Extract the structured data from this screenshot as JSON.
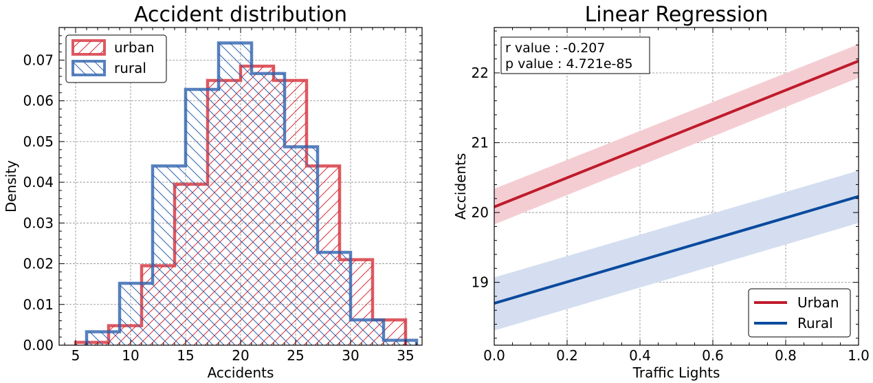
{
  "chart_data": [
    {
      "type": "histogram",
      "title": "Accident distribution",
      "xlabel": "Accidents",
      "ylabel": "Density",
      "xlim": [
        3.5,
        36.5
      ],
      "ylim": [
        0,
        0.078
      ],
      "xticks": [
        5,
        10,
        15,
        20,
        25,
        30,
        35
      ],
      "yticks": [
        0.0,
        0.01,
        0.02,
        0.03,
        0.04,
        0.05,
        0.06,
        0.07
      ],
      "ytick_labels": [
        "0.00",
        "0.01",
        "0.02",
        "0.03",
        "0.04",
        "0.05",
        "0.06",
        "0.07"
      ],
      "grid": true,
      "legend_position": "top-left",
      "series": [
        {
          "name": "urban",
          "color": "#d62f3a",
          "hatch": "/",
          "bin_edges": [
            5,
            8,
            11,
            14,
            17,
            20,
            23,
            26,
            29,
            32,
            35
          ],
          "values": [
            0.0007,
            0.0048,
            0.0195,
            0.0395,
            0.065,
            0.0685,
            0.065,
            0.044,
            0.021,
            0.0062
          ]
        },
        {
          "name": "rural",
          "color": "#2d62ae",
          "hatch": "\\",
          "bin_edges": [
            6,
            9,
            12,
            15,
            18,
            21,
            24,
            27,
            30,
            33,
            36
          ],
          "values": [
            0.0033,
            0.0152,
            0.044,
            0.0628,
            0.0742,
            0.0667,
            0.0487,
            0.0228,
            0.0062,
            0.0012
          ]
        }
      ]
    },
    {
      "type": "line",
      "title": "Linear Regression",
      "xlabel": "Traffic Lights",
      "ylabel": "Accidents",
      "xlim": [
        0.0,
        1.0
      ],
      "ylim": [
        18.1,
        22.65
      ],
      "xticks": [
        0.0,
        0.2,
        0.4,
        0.6,
        0.8,
        1.0
      ],
      "xtick_labels": [
        "0.0",
        "0.2",
        "0.4",
        "0.6",
        "0.8",
        "1.0"
      ],
      "yticks": [
        19,
        20,
        21,
        22
      ],
      "grid": true,
      "legend_position": "bottom-right",
      "annotation": [
        "r value : -0.207",
        "p value : 4.721e-85"
      ],
      "series": [
        {
          "name": "Urban",
          "color": "#bf1b2c",
          "band_color": "#f4cdd2",
          "x": [
            0.0,
            1.0
          ],
          "y": [
            20.08,
            22.17
          ],
          "ci_lower": [
            19.83,
            21.93
          ],
          "ci_upper": [
            20.34,
            22.41
          ]
        },
        {
          "name": "Rural",
          "color": "#0a4a9e",
          "band_color": "#d4def0",
          "x": [
            0.0,
            1.0
          ],
          "y": [
            18.7,
            20.23
          ],
          "ci_lower": [
            18.31,
            19.85
          ],
          "ci_upper": [
            19.07,
            20.6
          ]
        }
      ]
    }
  ]
}
